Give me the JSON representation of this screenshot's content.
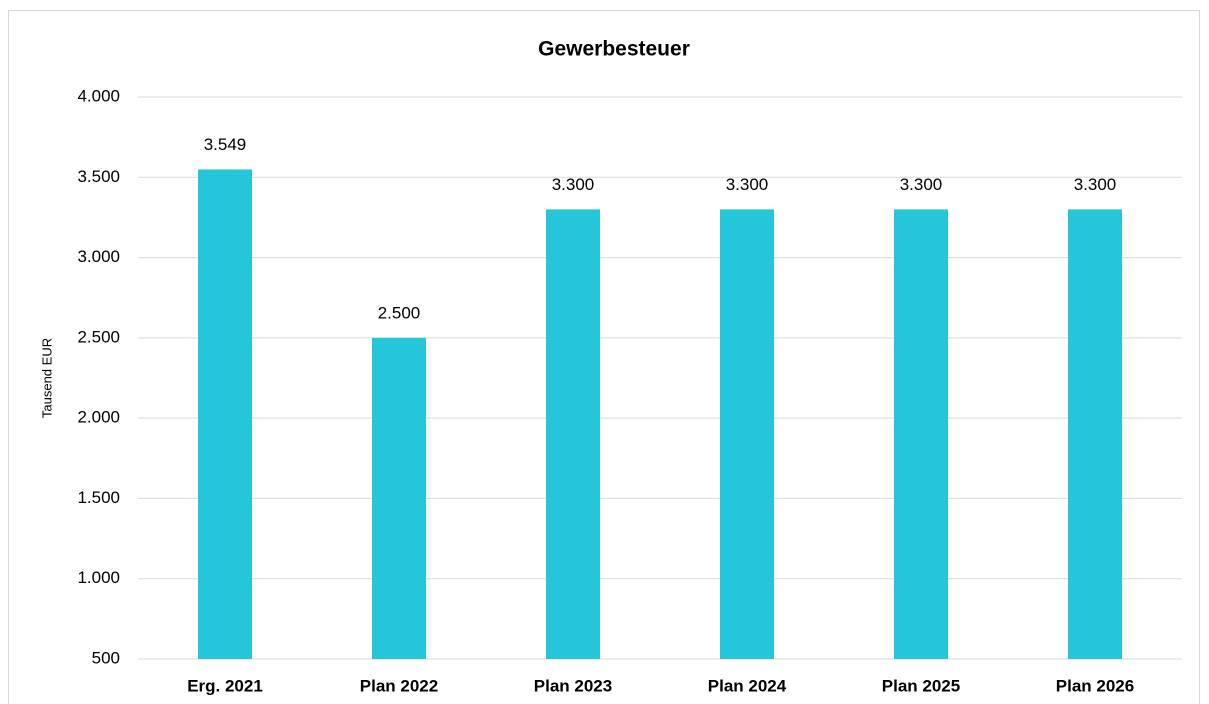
{
  "chart_data": {
    "type": "bar",
    "title": "Gewerbesteuer",
    "y_label": "Tausend EUR",
    "categories": [
      "Erg. 2021",
      "Plan 2022",
      "Plan 2023",
      "Plan 2024",
      "Plan 2025",
      "Plan 2026"
    ],
    "values": [
      3549,
      2500,
      3300,
      3300,
      3300,
      3300
    ],
    "value_labels": [
      "3.549",
      "2.500",
      "3.300",
      "3.300",
      "3.300",
      "3.300"
    ],
    "color": "#26c6da",
    "ylim": [
      500,
      4000
    ],
    "yticks": [
      500,
      {
        "value": 1000,
        "label": "1.000"
      },
      {
        "value": 1500,
        "label": "1.500"
      },
      {
        "value": 2000,
        "label": "2.000"
      },
      {
        "value": 2500,
        "label": "2.500"
      },
      {
        "value": 3000,
        "label": "3.000"
      },
      {
        "value": 3500,
        "label": "3.500"
      },
      {
        "value": 4000,
        "label": "4.000"
      }
    ],
    "grid": true
  }
}
